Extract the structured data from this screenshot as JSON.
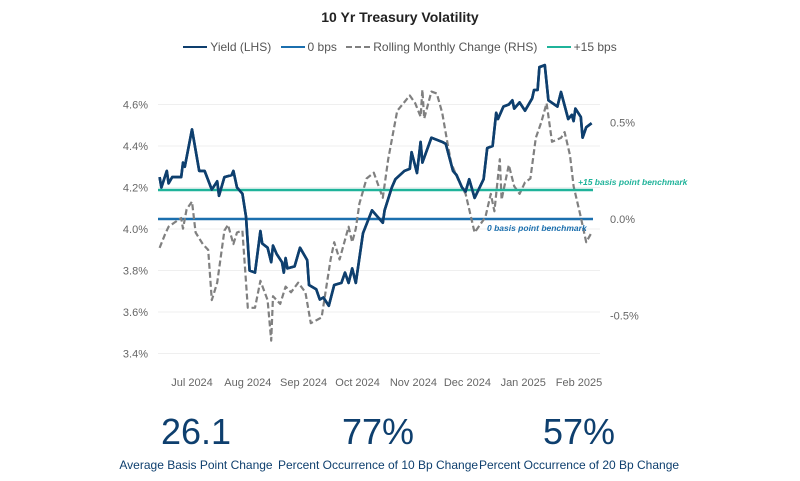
{
  "chart_data": {
    "type": "line",
    "title": "10 Yr Treasury Volatility",
    "legend_position": "top",
    "grid": true,
    "x_ticks": [
      {
        "date": "2024-07-01",
        "label": "Jul 2024"
      },
      {
        "date": "2024-08-01",
        "label": "Aug 2024"
      },
      {
        "date": "2024-09-01",
        "label": "Sep 2024"
      },
      {
        "date": "2024-10-01",
        "label": "Oct 2024"
      },
      {
        "date": "2024-11-01",
        "label": "Nov 2024"
      },
      {
        "date": "2024-12-01",
        "label": "Dec 2024"
      },
      {
        "date": "2025-01-01",
        "label": "Jan 2025"
      },
      {
        "date": "2025-02-01",
        "label": "Feb 2025"
      }
    ],
    "y_left": {
      "ylim": [
        3.4,
        4.7
      ],
      "ticks": [
        3.4,
        3.6,
        3.8,
        4.0,
        4.2,
        4.4,
        4.6
      ],
      "tick_labels": [
        "3.4%",
        "3.6%",
        "3.8%",
        "4.0%",
        "4.2%",
        "4.4%",
        "4.6%"
      ]
    },
    "y_right": {
      "ylim": [
        -0.7,
        0.75
      ],
      "ticks": [
        -0.5,
        0.0,
        0.5
      ],
      "tick_labels": [
        "-0.5%",
        "0.0%",
        "0.5%"
      ]
    },
    "series": [
      {
        "name": "Yield (LHS)",
        "axis": "left",
        "color": "#0e3f6e",
        "style": "solid",
        "points": [
          [
            "2024-06-13",
            4.25
          ],
          [
            "2024-06-14",
            4.2
          ],
          [
            "2024-06-17",
            4.28
          ],
          [
            "2024-06-18",
            4.22
          ],
          [
            "2024-06-20",
            4.25
          ],
          [
            "2024-06-25",
            4.25
          ],
          [
            "2024-06-26",
            4.32
          ],
          [
            "2024-06-27",
            4.3
          ],
          [
            "2024-07-01",
            4.48
          ],
          [
            "2024-07-05",
            4.28
          ],
          [
            "2024-07-08",
            4.28
          ],
          [
            "2024-07-12",
            4.19
          ],
          [
            "2024-07-15",
            4.23
          ],
          [
            "2024-07-16",
            4.16
          ],
          [
            "2024-07-19",
            4.25
          ],
          [
            "2024-07-23",
            4.26
          ],
          [
            "2024-07-24",
            4.28
          ],
          [
            "2024-07-26",
            4.2
          ],
          [
            "2024-07-29",
            4.17
          ],
          [
            "2024-07-31",
            4.06
          ],
          [
            "2024-08-02",
            3.8
          ],
          [
            "2024-08-05",
            3.79
          ],
          [
            "2024-08-08",
            3.99
          ],
          [
            "2024-08-09",
            3.93
          ],
          [
            "2024-08-12",
            3.91
          ],
          [
            "2024-08-14",
            3.84
          ],
          [
            "2024-08-15",
            3.92
          ],
          [
            "2024-08-17",
            3.88
          ],
          [
            "2024-08-20",
            3.84
          ],
          [
            "2024-08-21",
            3.79
          ],
          [
            "2024-08-22",
            3.86
          ],
          [
            "2024-08-23",
            3.81
          ],
          [
            "2024-08-27",
            3.82
          ],
          [
            "2024-08-30",
            3.91
          ],
          [
            "2024-09-03",
            3.85
          ],
          [
            "2024-09-04",
            3.73
          ],
          [
            "2024-09-08",
            3.71
          ],
          [
            "2024-09-10",
            3.66
          ],
          [
            "2024-09-12",
            3.67
          ],
          [
            "2024-09-15",
            3.63
          ],
          [
            "2024-09-18",
            3.73
          ],
          [
            "2024-09-22",
            3.74
          ],
          [
            "2024-09-24",
            3.79
          ],
          [
            "2024-09-26",
            3.74
          ],
          [
            "2024-09-28",
            3.81
          ],
          [
            "2024-09-30",
            3.74
          ],
          [
            "2024-10-04",
            3.98
          ],
          [
            "2024-10-09",
            4.09
          ],
          [
            "2024-10-15",
            4.03
          ],
          [
            "2024-10-16",
            4.09
          ],
          [
            "2024-10-20",
            4.2
          ],
          [
            "2024-10-22",
            4.24
          ],
          [
            "2024-10-27",
            4.28
          ],
          [
            "2024-10-30",
            4.29
          ],
          [
            "2024-10-31",
            4.37
          ],
          [
            "2024-11-03",
            4.27
          ],
          [
            "2024-11-05",
            4.42
          ],
          [
            "2024-11-06",
            4.32
          ],
          [
            "2024-11-11",
            4.44
          ],
          [
            "2024-11-17",
            4.42
          ],
          [
            "2024-11-19",
            4.41
          ],
          [
            "2024-11-23",
            4.28
          ],
          [
            "2024-11-25",
            4.26
          ],
          [
            "2024-11-28",
            4.2
          ],
          [
            "2024-11-30",
            4.18
          ],
          [
            "2024-12-02",
            4.24
          ],
          [
            "2024-12-05",
            4.15
          ],
          [
            "2024-12-10",
            4.24
          ],
          [
            "2024-12-12",
            4.39
          ],
          [
            "2024-12-15",
            4.4
          ],
          [
            "2024-12-17",
            4.56
          ],
          [
            "2024-12-18",
            4.53
          ],
          [
            "2024-12-21",
            4.59
          ],
          [
            "2024-12-24",
            4.6
          ],
          [
            "2024-12-26",
            4.62
          ],
          [
            "2024-12-27",
            4.58
          ],
          [
            "2024-12-30",
            4.61
          ],
          [
            "2025-01-02",
            4.57
          ],
          [
            "2025-01-06",
            4.63
          ],
          [
            "2025-01-07",
            4.67
          ],
          [
            "2025-01-09",
            4.67
          ],
          [
            "2025-01-10",
            4.78
          ],
          [
            "2025-01-13",
            4.79
          ],
          [
            "2025-01-15",
            4.62
          ],
          [
            "2025-01-20",
            4.59
          ],
          [
            "2025-01-22",
            4.66
          ],
          [
            "2025-01-26",
            4.53
          ],
          [
            "2025-01-28",
            4.55
          ],
          [
            "2025-01-29",
            4.52
          ],
          [
            "2025-01-30",
            4.58
          ],
          [
            "2025-02-02",
            4.54
          ],
          [
            "2025-02-03",
            4.44
          ],
          [
            "2025-02-05",
            4.49
          ],
          [
            "2025-02-08",
            4.51
          ]
        ]
      },
      {
        "name": "0 bps",
        "axis": "right",
        "color": "#1b6fae",
        "style": "solid",
        "constant": 0.0
      },
      {
        "name": "Rolling Monthly Change (RHS)",
        "axis": "right",
        "color": "#808080",
        "style": "dashed",
        "points": [
          [
            "2024-06-13",
            -0.15
          ],
          [
            "2024-06-16",
            -0.08
          ],
          [
            "2024-06-18",
            -0.04
          ],
          [
            "2024-06-21",
            -0.02
          ],
          [
            "2024-06-25",
            0.005
          ],
          [
            "2024-06-26",
            -0.05
          ],
          [
            "2024-06-28",
            0.05
          ],
          [
            "2024-07-01",
            0.09
          ],
          [
            "2024-07-03",
            -0.07
          ],
          [
            "2024-07-07",
            -0.13
          ],
          [
            "2024-07-10",
            -0.16
          ],
          [
            "2024-07-12",
            -0.42
          ],
          [
            "2024-07-15",
            -0.33
          ],
          [
            "2024-07-19",
            -0.06
          ],
          [
            "2024-07-21",
            -0.03
          ],
          [
            "2024-07-24",
            -0.13
          ],
          [
            "2024-07-26",
            -0.07
          ],
          [
            "2024-07-29",
            -0.06
          ],
          [
            "2024-08-01",
            -0.46
          ],
          [
            "2024-08-05",
            -0.46
          ],
          [
            "2024-08-08",
            -0.32
          ],
          [
            "2024-08-12",
            -0.42
          ],
          [
            "2024-08-14",
            -0.63
          ],
          [
            "2024-08-15",
            -0.4
          ],
          [
            "2024-08-19",
            -0.44
          ],
          [
            "2024-08-22",
            -0.35
          ],
          [
            "2024-08-25",
            -0.38
          ],
          [
            "2024-08-29",
            -0.33
          ],
          [
            "2024-09-02",
            -0.38
          ],
          [
            "2024-09-05",
            -0.54
          ],
          [
            "2024-09-09",
            -0.52
          ],
          [
            "2024-09-11",
            -0.51
          ],
          [
            "2024-09-16",
            -0.21
          ],
          [
            "2024-09-18",
            -0.12
          ],
          [
            "2024-09-21",
            -0.21
          ],
          [
            "2024-09-26",
            -0.04
          ],
          [
            "2024-09-28",
            -0.12
          ],
          [
            "2024-09-30",
            -0.05
          ],
          [
            "2024-10-02",
            0.08
          ],
          [
            "2024-10-06",
            0.21
          ],
          [
            "2024-10-10",
            0.24
          ],
          [
            "2024-10-15",
            0.11
          ],
          [
            "2024-10-18",
            0.31
          ],
          [
            "2024-10-23",
            0.56
          ],
          [
            "2024-10-30",
            0.64
          ],
          [
            "2024-11-02",
            0.6
          ],
          [
            "2024-11-05",
            0.53
          ],
          [
            "2024-11-06",
            0.67
          ],
          [
            "2024-11-07",
            0.52
          ],
          [
            "2024-11-11",
            0.66
          ],
          [
            "2024-11-14",
            0.65
          ],
          [
            "2024-11-17",
            0.55
          ],
          [
            "2024-11-20",
            0.39
          ],
          [
            "2024-11-22",
            0.29
          ],
          [
            "2024-11-26",
            0.2
          ],
          [
            "2024-11-30",
            0.13
          ],
          [
            "2024-12-05",
            -0.07
          ],
          [
            "2024-12-08",
            -0.03
          ],
          [
            "2024-12-11",
            0.01
          ],
          [
            "2024-12-14",
            0.13
          ],
          [
            "2024-12-16",
            0.04
          ],
          [
            "2024-12-19",
            0.31
          ],
          [
            "2024-12-20",
            0.1
          ],
          [
            "2024-12-24",
            0.28
          ],
          [
            "2024-12-27",
            0.17
          ],
          [
            "2024-12-30",
            0.13
          ],
          [
            "2025-01-02",
            0.19
          ],
          [
            "2025-01-05",
            0.21
          ],
          [
            "2025-01-08",
            0.42
          ],
          [
            "2025-01-11",
            0.5
          ],
          [
            "2025-01-14",
            0.6
          ],
          [
            "2025-01-17",
            0.4
          ],
          [
            "2025-01-22",
            0.42
          ],
          [
            "2025-01-24",
            0.45
          ],
          [
            "2025-01-27",
            0.33
          ],
          [
            "2025-01-29",
            0.17
          ],
          [
            "2025-02-02",
            0.01
          ],
          [
            "2025-02-05",
            -0.12
          ],
          [
            "2025-02-08",
            -0.07
          ]
        ]
      },
      {
        "name": "+15 bps",
        "axis": "right",
        "color": "#1fb39a",
        "style": "solid",
        "constant": 0.15
      }
    ],
    "annotations": [
      {
        "text": "+15 basis point benchmark",
        "color": "#1fb39a"
      },
      {
        "text": "0 basis point benchmark",
        "color": "#1b6fae"
      }
    ]
  },
  "stats": [
    {
      "value": "26.1",
      "label": "Average Basis Point Change"
    },
    {
      "value": "77%",
      "label": "Percent Occurrence of 10 Bp Change"
    },
    {
      "value": "57%",
      "label": "Percent Occurrence of 20 Bp Change"
    }
  ]
}
